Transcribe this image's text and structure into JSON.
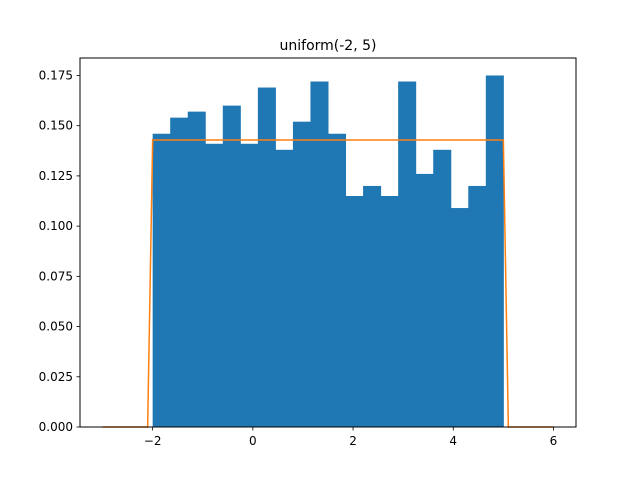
{
  "chart_data": {
    "type": "bar",
    "title": "uniform(-2, 5)",
    "xlabel": "",
    "ylabel": "",
    "xlim": [
      -3.45,
      6.45
    ],
    "ylim": [
      0.0,
      0.1837
    ],
    "xticks": [
      {
        "value": -2,
        "label": "−2"
      },
      {
        "value": 0,
        "label": "0"
      },
      {
        "value": 2,
        "label": "2"
      },
      {
        "value": 4,
        "label": "4"
      },
      {
        "value": 6,
        "label": "6"
      }
    ],
    "yticks": [
      {
        "value": 0.0,
        "label": "0.000"
      },
      {
        "value": 0.025,
        "label": "0.025"
      },
      {
        "value": 0.05,
        "label": "0.050"
      },
      {
        "value": 0.075,
        "label": "0.075"
      },
      {
        "value": 0.1,
        "label": "0.100"
      },
      {
        "value": 0.125,
        "label": "0.125"
      },
      {
        "value": 0.15,
        "label": "0.150"
      },
      {
        "value": 0.175,
        "label": "0.175"
      }
    ],
    "histogram": {
      "bin_edges": [
        -2.0,
        -1.65,
        -1.3,
        -0.95,
        -0.6,
        -0.25,
        0.1,
        0.45,
        0.8,
        1.15,
        1.5,
        1.85,
        2.2,
        2.55,
        2.9,
        3.25,
        3.6,
        3.95,
        4.3,
        4.65,
        5.0
      ],
      "values": [
        0.146,
        0.154,
        0.157,
        0.141,
        0.16,
        0.141,
        0.169,
        0.138,
        0.152,
        0.172,
        0.146,
        0.115,
        0.12,
        0.115,
        0.172,
        0.126,
        0.138,
        0.109,
        0.12,
        0.175
      ],
      "color": "#1f77b4"
    },
    "pdf_line": {
      "x": [
        -3.0,
        -2.1,
        -2.0,
        5.0,
        5.1,
        6.0
      ],
      "y": [
        0.0,
        0.0,
        0.1429,
        0.1429,
        0.0,
        0.0
      ],
      "color": "#ff7f0e"
    },
    "grid": false
  }
}
